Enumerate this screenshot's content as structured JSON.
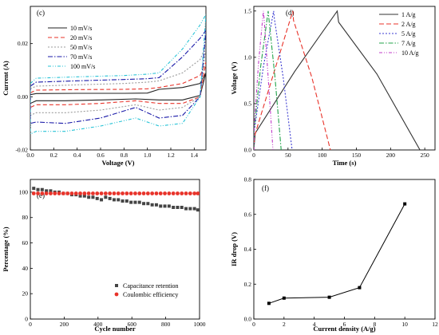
{
  "colors": {
    "axis": "#000000",
    "c_series": [
      "#222222",
      "#e8332a",
      "#9b9b9b",
      "#1a1aa8",
      "#27c3d6"
    ],
    "d_series": [
      "#333333",
      "#e8332a",
      "#3a3ad0",
      "#22a34a",
      "#c23fc9"
    ],
    "capacitance": "#444444",
    "coulombic": "#e8332a",
    "ir": "#000000"
  },
  "chart_data": [
    {
      "panel": "(c)",
      "type": "line",
      "xlabel": "Voltage (V)",
      "ylabel": "Current (A)",
      "xlim": [
        0,
        1.5
      ],
      "ylim": [
        -0.02,
        0.034
      ],
      "xticks": [
        "0.0",
        "0.2",
        "0.4",
        "0.6",
        "0.8",
        "1.0",
        "1.2",
        "1.4"
      ],
      "xtick_values": [
        0,
        0.2,
        0.4,
        0.6,
        0.8,
        1.0,
        1.2,
        1.4
      ],
      "yticks": [
        "-0.02",
        "0.00",
        "0.02"
      ],
      "ytick_values": [
        -0.02,
        0.0,
        0.02
      ],
      "legend_position": "top-left",
      "series": [
        {
          "name": "10 mV/s",
          "dash": "",
          "x": [
            0,
            0.05,
            0.4,
            0.8,
            1.0,
            1.1,
            1.3,
            1.45,
            1.5,
            1.45,
            1.3,
            1.1,
            0.9,
            0.6,
            0.3,
            0.05,
            0
          ],
          "y": [
            0.0008,
            0.0012,
            0.0013,
            0.0013,
            0.0014,
            0.0028,
            0.0035,
            0.005,
            0.009,
            0.0005,
            -0.0012,
            -0.0012,
            -0.0008,
            -0.0012,
            -0.0015,
            -0.0015,
            -0.0025
          ]
        },
        {
          "name": "20 mV/s",
          "dash": "5,3",
          "x": [
            0,
            0.05,
            0.4,
            0.8,
            1.0,
            1.1,
            1.3,
            1.45,
            1.5,
            1.45,
            1.3,
            1.1,
            0.9,
            0.6,
            0.3,
            0.05,
            0
          ],
          "y": [
            0.0015,
            0.0025,
            0.0027,
            0.0028,
            0.003,
            0.0035,
            0.005,
            0.008,
            0.013,
            0.0,
            -0.0025,
            -0.0025,
            -0.0015,
            -0.0025,
            -0.003,
            -0.003,
            -0.004
          ]
        },
        {
          "name": "50 mV/s",
          "dash": "2,2",
          "x": [
            0,
            0.05,
            0.4,
            0.8,
            1.0,
            1.1,
            1.3,
            1.45,
            1.5,
            1.45,
            1.3,
            1.1,
            0.9,
            0.6,
            0.3,
            0.05,
            0
          ],
          "y": [
            0.003,
            0.004,
            0.0045,
            0.005,
            0.0055,
            0.006,
            0.009,
            0.014,
            0.019,
            0.0,
            -0.004,
            -0.005,
            -0.003,
            -0.005,
            -0.006,
            -0.006,
            -0.007
          ]
        },
        {
          "name": "70 mV/s",
          "dash": "6,2,1.5,2",
          "x": [
            0,
            0.05,
            0.4,
            0.8,
            1.0,
            1.1,
            1.3,
            1.45,
            1.5,
            1.45,
            1.3,
            1.1,
            0.9,
            0.6,
            0.3,
            0.05,
            0
          ],
          "y": [
            0.004,
            0.0055,
            0.006,
            0.0065,
            0.0068,
            0.0072,
            0.015,
            0.022,
            0.025,
            0.0,
            -0.007,
            -0.008,
            -0.004,
            -0.008,
            -0.01,
            -0.0095,
            -0.01
          ]
        },
        {
          "name": "100 mV/s",
          "dash": "4,2,1,2,1,2",
          "x": [
            0,
            0.05,
            0.4,
            0.8,
            1.0,
            1.1,
            1.3,
            1.45,
            1.5,
            1.45,
            1.3,
            1.1,
            0.9,
            0.6,
            0.3,
            0.05,
            0
          ],
          "y": [
            0.005,
            0.007,
            0.0075,
            0.008,
            0.0085,
            0.009,
            0.018,
            0.027,
            0.031,
            0.0,
            -0.01,
            -0.011,
            -0.008,
            -0.011,
            -0.013,
            -0.013,
            -0.014
          ]
        }
      ]
    },
    {
      "panel": "(d)",
      "type": "line",
      "xlabel": "Time (s)",
      "ylabel": "Voltage (V)",
      "xlim": [
        0,
        265
      ],
      "ylim": [
        0,
        1.55
      ],
      "xticks": [
        "0",
        "50",
        "100",
        "150",
        "200",
        "250"
      ],
      "xtick_values": [
        0,
        50,
        100,
        150,
        200,
        250
      ],
      "yticks": [
        "0.0",
        "0.5",
        "1.0",
        "1.5"
      ],
      "ytick_values": [
        0,
        0.5,
        1.0,
        1.5
      ],
      "legend_position": "top-right",
      "series": [
        {
          "name": "1 A/g",
          "dash": "",
          "x": [
            0,
            2,
            60,
            122,
            124,
            180,
            243
          ],
          "y": [
            0.0,
            0.18,
            0.85,
            1.5,
            1.38,
            0.82,
            0.0
          ]
        },
        {
          "name": "2 A/g",
          "dash": "6,3",
          "x": [
            0,
            1,
            30,
            57,
            58,
            85,
            112
          ],
          "y": [
            0.0,
            0.15,
            0.85,
            1.5,
            1.4,
            0.78,
            0.0
          ]
        },
        {
          "name": "5 A/g",
          "dash": "2,2",
          "x": [
            0,
            0.5,
            14,
            29,
            30,
            43,
            56
          ],
          "y": [
            0.0,
            0.2,
            0.9,
            1.5,
            1.42,
            0.78,
            0.0
          ]
        },
        {
          "name": "7 A/g",
          "dash": "6,2,1.5,2",
          "x": [
            0,
            0.5,
            10,
            21,
            22,
            31,
            40
          ],
          "y": [
            0.0,
            0.22,
            0.9,
            1.5,
            1.42,
            0.78,
            0.0
          ]
        },
        {
          "name": "10 A/g",
          "dash": "4,2,1,2,1,2",
          "x": [
            0,
            0.5,
            7,
            14,
            15,
            21,
            28
          ],
          "y": [
            0.0,
            0.25,
            0.95,
            1.5,
            1.42,
            0.78,
            0.0
          ]
        }
      ]
    },
    {
      "panel": "(e)",
      "type": "scatter",
      "xlabel": "Cycle number",
      "ylabel": "Percentage (%)",
      "xlim": [
        0,
        1000
      ],
      "ylim": [
        0,
        110
      ],
      "xticks": [
        "0",
        "200",
        "400",
        "600",
        "800",
        "1000"
      ],
      "xtick_values": [
        0,
        200,
        400,
        600,
        800,
        1000
      ],
      "yticks": [
        "0",
        "20",
        "40",
        "60",
        "80",
        "100"
      ],
      "ytick_values": [
        0,
        20,
        40,
        60,
        80,
        100
      ],
      "legend_position": "bottom-right",
      "series": [
        {
          "name": "Capacitance retention",
          "marker": "square",
          "x": [
            20,
            45,
            70,
            95,
            120,
            145,
            170,
            195,
            220,
            245,
            270,
            295,
            320,
            345,
            370,
            395,
            420,
            445,
            470,
            495,
            520,
            545,
            570,
            595,
            620,
            645,
            670,
            695,
            720,
            745,
            770,
            795,
            820,
            845,
            870,
            895,
            920,
            945,
            970,
            990
          ],
          "y": [
            103,
            102,
            102,
            101,
            101,
            100,
            100,
            99,
            99,
            98,
            98,
            97,
            97,
            96,
            96,
            95,
            94,
            96,
            95,
            94,
            94,
            93,
            93,
            92,
            92,
            92,
            91,
            91,
            90,
            90,
            89,
            89,
            89,
            88,
            88,
            88,
            87,
            87,
            87,
            86
          ]
        },
        {
          "name": "Coulombic efficiency",
          "marker": "circle",
          "x": [
            20,
            45,
            70,
            95,
            120,
            145,
            170,
            195,
            220,
            245,
            270,
            295,
            320,
            345,
            370,
            395,
            420,
            445,
            470,
            495,
            520,
            545,
            570,
            595,
            620,
            645,
            670,
            695,
            720,
            745,
            770,
            795,
            820,
            845,
            870,
            895,
            920,
            945,
            970,
            990
          ],
          "y": [
            99,
            99,
            99,
            99,
            99,
            99,
            99,
            99,
            99,
            99,
            99,
            99,
            99,
            99,
            99,
            99,
            99,
            99,
            99,
            99,
            99,
            99,
            99,
            99,
            99,
            99,
            99,
            99,
            99,
            99,
            99,
            99,
            99,
            99,
            99,
            99,
            99,
            99,
            99,
            99
          ]
        }
      ]
    },
    {
      "panel": "(f)",
      "type": "line",
      "xlabel": "Current density (A/g)",
      "ylabel": "IR drop (V)",
      "xlim": [
        0,
        12
      ],
      "ylim": [
        0,
        0.8
      ],
      "xticks": [
        "0",
        "2",
        "4",
        "6",
        "8",
        "10",
        "12"
      ],
      "xtick_values": [
        0,
        2,
        4,
        6,
        8,
        10,
        12
      ],
      "yticks": [
        "0.0",
        "0.2",
        "0.4",
        "0.6",
        "0.8"
      ],
      "ytick_values": [
        0,
        0.2,
        0.4,
        0.6,
        0.8
      ],
      "series": [
        {
          "marker": "square",
          "x": [
            1,
            2,
            5,
            7,
            10
          ],
          "y": [
            0.09,
            0.12,
            0.125,
            0.18,
            0.66
          ]
        }
      ]
    }
  ]
}
